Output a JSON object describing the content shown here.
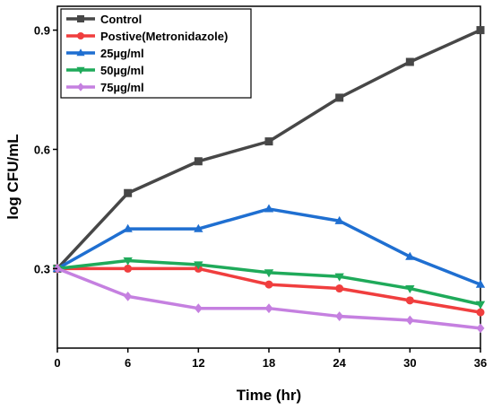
{
  "chart_data": {
    "type": "line",
    "xlabel": "Time (hr)",
    "ylabel": "log CFU/mL",
    "x": [
      0,
      6,
      12,
      18,
      24,
      30,
      36
    ],
    "xlim": [
      0,
      36
    ],
    "xticks": [
      "0",
      "6",
      "12",
      "18",
      "24",
      "30",
      "36"
    ],
    "ylim": [
      0.1,
      0.96
    ],
    "yticks": [
      "0.3",
      "0.6",
      "0.9"
    ],
    "grid": false,
    "legend_position": "top-left",
    "series": [
      {
        "name": "Control",
        "color": "#474747",
        "marker": "square",
        "values": [
          0.3,
          0.49,
          0.57,
          0.62,
          0.73,
          0.82,
          0.9
        ]
      },
      {
        "name": "Postive(Metronidazole)",
        "color": "#f03e3e",
        "marker": "circle",
        "values": [
          0.3,
          0.3,
          0.3,
          0.26,
          0.25,
          0.22,
          0.19
        ]
      },
      {
        "name": "25µg/ml",
        "color": "#1f6fd1",
        "marker": "triangle-up",
        "values": [
          0.3,
          0.4,
          0.4,
          0.45,
          0.42,
          0.33,
          0.26
        ]
      },
      {
        "name": "50µg/ml",
        "color": "#1faa5a",
        "marker": "triangle-down",
        "values": [
          0.3,
          0.32,
          0.31,
          0.29,
          0.28,
          0.25,
          0.21
        ]
      },
      {
        "name": "75µg/ml",
        "color": "#c580e0",
        "marker": "diamond",
        "values": [
          0.3,
          0.23,
          0.2,
          0.2,
          0.18,
          0.17,
          0.15
        ]
      }
    ]
  }
}
